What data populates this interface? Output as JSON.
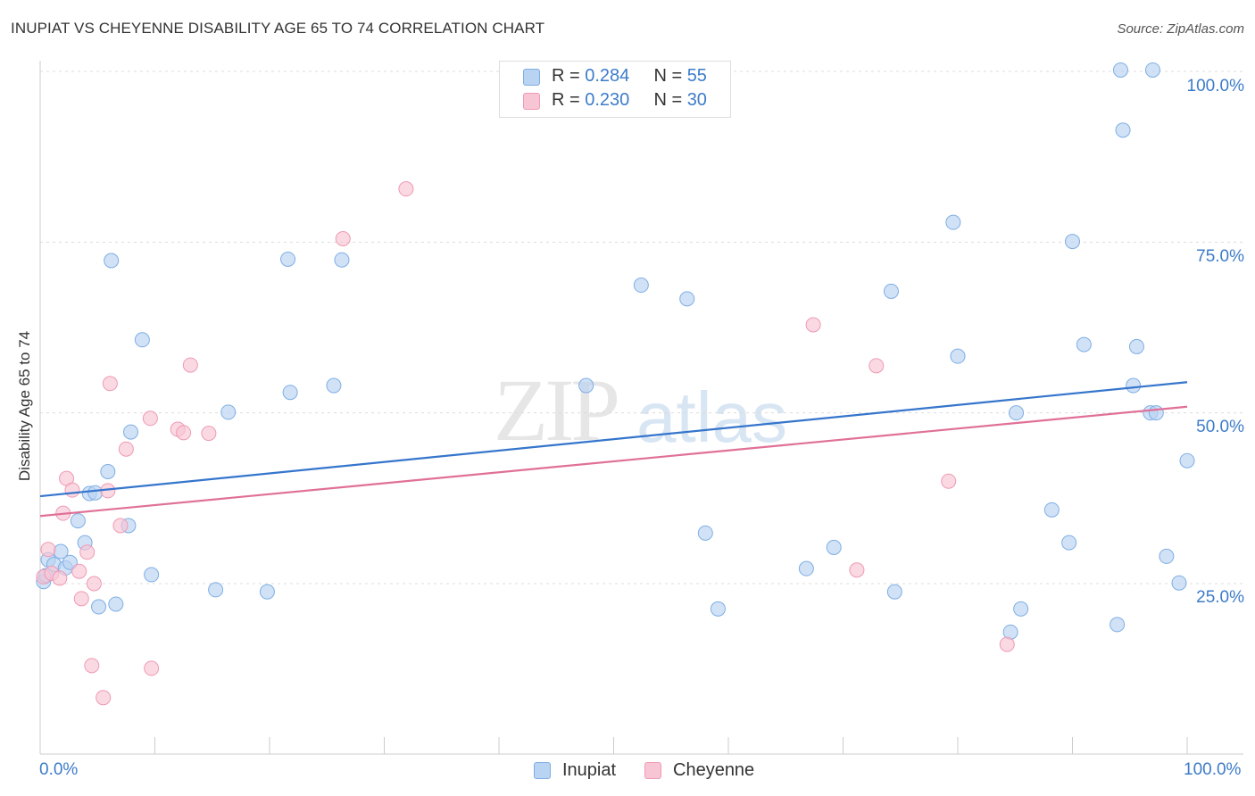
{
  "title": "INUPIAT VS CHEYENNE DISABILITY AGE 65 TO 74 CORRELATION CHART",
  "source": "Source: ZipAtlas.com",
  "watermark": {
    "zip": "ZIP",
    "atlas": "atlas"
  },
  "legend": {
    "rows": [
      {
        "r_label": "R = ",
        "r_value": "0.284",
        "n_label": "N = ",
        "n_value": "55"
      },
      {
        "r_label": "R = ",
        "r_value": "0.230",
        "n_label": "N = ",
        "n_value": "30"
      }
    ]
  },
  "colors": {
    "inupiat_fill": "#b9d3f2",
    "inupiat_stroke": "#7eaee3",
    "inupiat_line": "#3575cc",
    "cheyenne_fill": "#f8c5d4",
    "cheyenne_stroke": "#ef9ab4",
    "cheyenne_line": "#e07098",
    "tick_text": "#3d7cc9"
  },
  "chart_data": {
    "type": "scatter",
    "title": "INUPIAT VS CHEYENNE DISABILITY AGE 65 TO 74 CORRELATION CHART",
    "xlabel": "",
    "ylabel": "Disability Age 65 to 74",
    "xlim": [
      0,
      100
    ],
    "ylim": [
      0,
      102
    ],
    "x_tick_labels": [
      "0.0%",
      "100.0%"
    ],
    "y_ticks": [
      25,
      50,
      75,
      100
    ],
    "y_tick_labels": [
      "25.0%",
      "50.0%",
      "75.0%",
      "100.0%"
    ],
    "grid": true,
    "legend_position": "top-center",
    "series": [
      {
        "name": "Inupiat",
        "points": [
          [
            0.3,
            25.3
          ],
          [
            0.7,
            28.5
          ],
          [
            1.2,
            27.8
          ],
          [
            1.8,
            29.7
          ],
          [
            2.2,
            27.3
          ],
          [
            2.6,
            28.1
          ],
          [
            3.3,
            34.2
          ],
          [
            3.9,
            31.0
          ],
          [
            4.3,
            38.2
          ],
          [
            4.8,
            38.3
          ],
          [
            5.1,
            21.6
          ],
          [
            5.9,
            41.4
          ],
          [
            6.2,
            72.3
          ],
          [
            6.6,
            22.0
          ],
          [
            7.7,
            33.5
          ],
          [
            7.9,
            47.2
          ],
          [
            8.9,
            60.7
          ],
          [
            9.7,
            26.3
          ],
          [
            15.3,
            24.1
          ],
          [
            16.4,
            50.1
          ],
          [
            19.8,
            23.8
          ],
          [
            21.6,
            72.5
          ],
          [
            21.8,
            53.0
          ],
          [
            25.6,
            54.0
          ],
          [
            26.3,
            72.4
          ],
          [
            47.6,
            54.0
          ],
          [
            52.4,
            68.7
          ],
          [
            56.4,
            66.7
          ],
          [
            58.0,
            32.4
          ],
          [
            59.1,
            21.3
          ],
          [
            66.8,
            27.2
          ],
          [
            69.2,
            30.3
          ],
          [
            74.2,
            67.8
          ],
          [
            74.5,
            23.8
          ],
          [
            79.6,
            77.9
          ],
          [
            80.0,
            58.3
          ],
          [
            84.6,
            17.9
          ],
          [
            85.1,
            50.0
          ],
          [
            85.5,
            21.3
          ],
          [
            88.2,
            35.8
          ],
          [
            89.7,
            31.0
          ],
          [
            90.0,
            75.1
          ],
          [
            91.0,
            60.0
          ],
          [
            93.9,
            19.0
          ],
          [
            94.2,
            100.2
          ],
          [
            94.4,
            91.4
          ],
          [
            95.3,
            54.0
          ],
          [
            95.6,
            59.7
          ],
          [
            96.8,
            50.0
          ],
          [
            97.0,
            100.2
          ],
          [
            97.3,
            50.0
          ],
          [
            98.2,
            29.0
          ],
          [
            99.3,
            25.1
          ],
          [
            100.0,
            43.0
          ],
          [
            0.5,
            26.2
          ]
        ],
        "trend": {
          "x": [
            0,
            100
          ],
          "y": [
            37.8,
            54.5
          ]
        }
      },
      {
        "name": "Cheyenne",
        "points": [
          [
            0.3,
            26.0
          ],
          [
            0.7,
            30.0
          ],
          [
            1.0,
            26.5
          ],
          [
            1.7,
            25.8
          ],
          [
            2.0,
            35.3
          ],
          [
            2.3,
            40.4
          ],
          [
            2.8,
            38.7
          ],
          [
            3.4,
            26.8
          ],
          [
            3.6,
            22.8
          ],
          [
            4.1,
            29.6
          ],
          [
            4.5,
            13.0
          ],
          [
            4.7,
            25.0
          ],
          [
            5.5,
            8.3
          ],
          [
            5.9,
            38.6
          ],
          [
            6.1,
            54.3
          ],
          [
            7.0,
            33.5
          ],
          [
            7.5,
            44.7
          ],
          [
            9.6,
            49.2
          ],
          [
            9.7,
            12.6
          ],
          [
            12.0,
            47.6
          ],
          [
            12.5,
            47.1
          ],
          [
            13.1,
            57.0
          ],
          [
            14.7,
            47.0
          ],
          [
            31.9,
            82.8
          ],
          [
            26.4,
            75.5
          ],
          [
            67.4,
            62.9
          ],
          [
            71.2,
            27.0
          ],
          [
            72.9,
            56.9
          ],
          [
            79.2,
            40.0
          ],
          [
            84.3,
            16.1
          ]
        ],
        "trend": {
          "x": [
            0,
            100
          ],
          "y": [
            34.9,
            50.9
          ]
        }
      }
    ]
  },
  "bottom_legend": [
    {
      "label": "Inupiat"
    },
    {
      "label": "Cheyenne"
    }
  ]
}
